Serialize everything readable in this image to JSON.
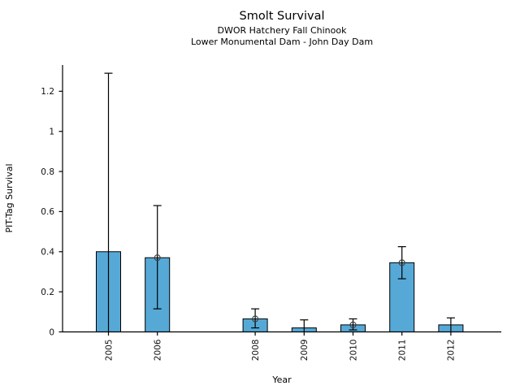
{
  "chart_data": {
    "type": "bar",
    "title": "Smolt Survival",
    "subtitles": [
      "DWOR Hatchery Fall Chinook",
      "Lower Monumental Dam - John Day Dam"
    ],
    "xlabel": "Year",
    "ylabel": "PIT-Tag Survival",
    "categories": [
      "2005",
      "2006",
      "2008",
      "2009",
      "2010",
      "2011",
      "2012"
    ],
    "x_years": [
      2005,
      2006,
      2008,
      2009,
      2010,
      2011,
      2012
    ],
    "values": [
      0.4,
      0.37,
      0.065,
      0.02,
      0.035,
      0.345,
      0.035
    ],
    "error_low": [
      0,
      0.115,
      0.02,
      0,
      0.01,
      0.265,
      0
    ],
    "error_high": [
      1.29,
      0.63,
      0.115,
      0.06,
      0.065,
      0.425,
      0.07
    ],
    "point_markers": [
      null,
      0.37,
      0.065,
      null,
      0.035,
      0.345,
      null
    ],
    "yticks": [
      0,
      0.2,
      0.4,
      0.6,
      0.8,
      1.0,
      1.2
    ],
    "ytick_labels": [
      "0",
      "0.2",
      "0.4",
      "0.6",
      "0.8",
      "1",
      "1.2"
    ],
    "ylim": [
      0,
      1.33
    ],
    "missing_years": [
      "2007"
    ],
    "grid": false,
    "legend": "none",
    "colors": {
      "bar_fill": "#56A9D6",
      "bar_edge": "#000000",
      "error_bar": "#000000",
      "marker_edge": "#3d3d3d",
      "axis": "#000000",
      "text": "#111111"
    }
  }
}
